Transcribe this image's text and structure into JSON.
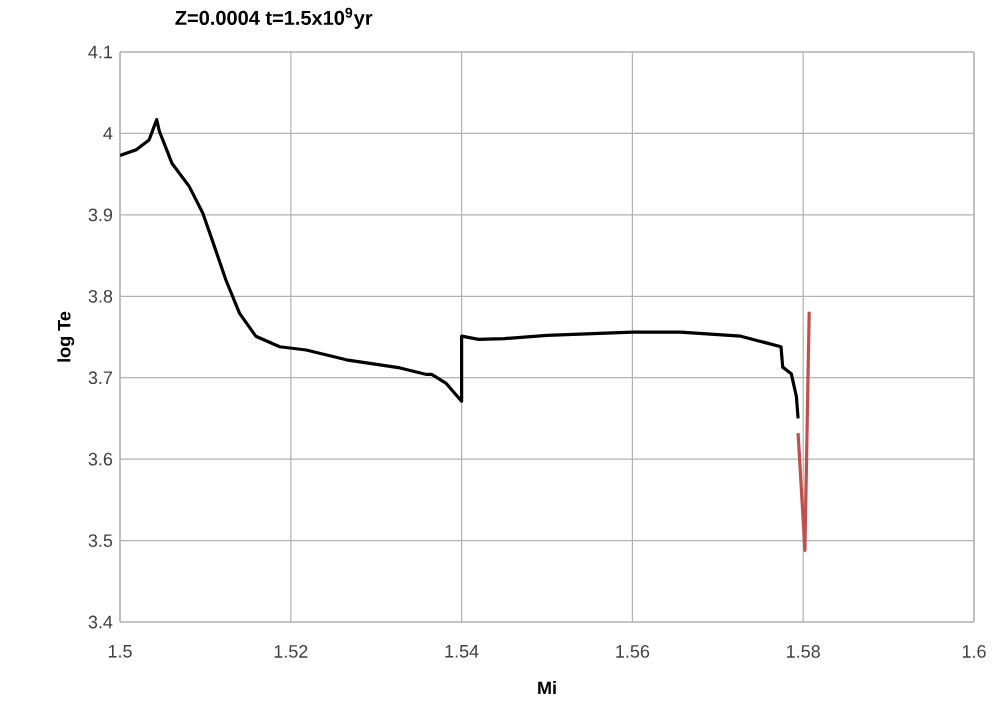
{
  "chart_data": {
    "type": "line",
    "title": "Z=0.0004    t=1.5x10$^{9}$yr",
    "xlabel": "Mi",
    "ylabel": "log Te",
    "xlim": [
      1.5,
      1.6
    ],
    "xticks": [
      1.5,
      1.52,
      1.54,
      1.56,
      1.58,
      1.6
    ],
    "ylim": [
      3.4,
      4.1
    ],
    "yticks": [
      3.4,
      3.5,
      3.6,
      3.7,
      3.8,
      3.9,
      4,
      4.1
    ],
    "grid": true,
    "marker": "none",
    "line_style": "solid",
    "series": [
      {
        "color": "#000000",
        "x": [
          1.5,
          1.5019,
          1.5034,
          1.5043,
          1.5046,
          1.5061,
          1.5081,
          1.5097,
          1.5108,
          1.5124,
          1.514,
          1.5159,
          1.5187,
          1.5218,
          1.5265,
          1.5328,
          1.5359,
          1.5365,
          1.5382,
          1.54,
          1.54,
          1.542,
          1.545,
          1.55,
          1.56,
          1.5656,
          1.5727,
          1.5774,
          1.5776,
          1.5786,
          1.5792,
          1.5794
        ],
        "values": [
          3.973,
          3.98,
          3.992,
          4.017,
          4.003,
          3.963,
          3.935,
          3.902,
          3.869,
          3.82,
          3.779,
          3.751,
          3.738,
          3.734,
          3.722,
          3.712,
          3.704,
          3.704,
          3.693,
          3.671,
          3.751,
          3.747,
          3.748,
          3.752,
          3.756,
          3.756,
          3.751,
          3.738,
          3.713,
          3.705,
          3.677,
          3.65
        ]
      },
      {
        "color": "#c0504d",
        "x": [
          1.5794,
          1.5802,
          1.5807
        ],
        "values": [
          3.632,
          3.488,
          3.781
        ]
      }
    ]
  }
}
